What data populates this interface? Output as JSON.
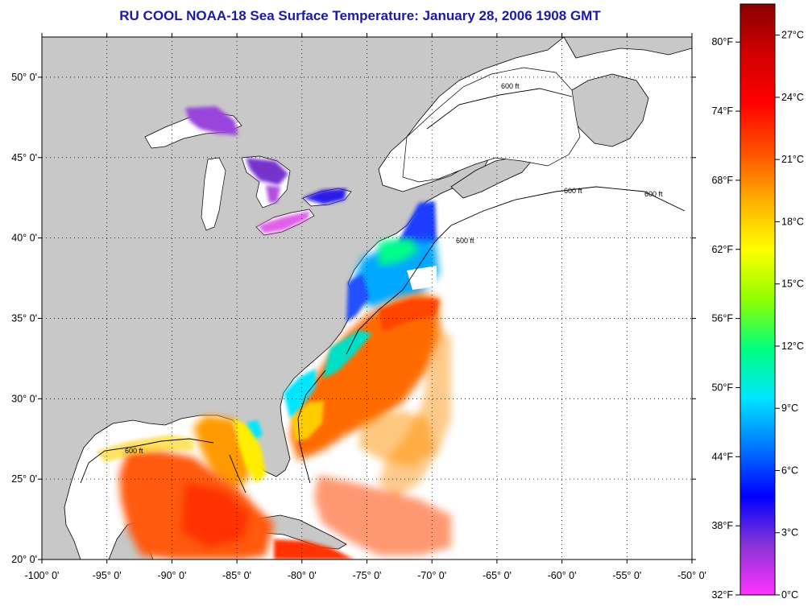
{
  "title": "RU COOL  NOAA-18  Sea Surface Temperature:  January 28, 2006 1908 GMT",
  "map": {
    "lon_ticks": [
      "-100° 0'",
      "-95° 0'",
      "-90° 0'",
      "-85° 0'",
      "-80° 0'",
      "-75° 0'",
      "-70° 0'",
      "-65° 0'",
      "-60° 0'",
      "-55° 0'",
      "-50° 0'"
    ],
    "lat_ticks": [
      "50° 0'",
      "45° 0'",
      "40° 0'",
      "35° 0'",
      "30° 0'",
      "25° 0'",
      "20° 0'"
    ],
    "lon_range": [
      -100,
      -50
    ],
    "lat_range": [
      20,
      52.5
    ],
    "gridlines": "dotted",
    "contour_labels": [
      "600 ft",
      "600 ft",
      "600 ft",
      "600 ft",
      "600 ft"
    ],
    "colors": {
      "land": "#c8c8c8",
      "no_data": "#ffffff",
      "frame": "#000000"
    }
  },
  "colorbar": {
    "fahrenheit_labels": [
      "80°F",
      "74°F",
      "68°F",
      "62°F",
      "56°F",
      "50°F",
      "44°F",
      "38°F",
      "32°F"
    ],
    "fahrenheit_values": [
      80,
      74,
      68,
      62,
      56,
      50,
      44,
      38,
      32
    ],
    "celsius_labels": [
      "27°C",
      "24°C",
      "21°C",
      "18°C",
      "15°C",
      "12°C",
      "9°C",
      "6°C",
      "3°C",
      "0°C"
    ],
    "celsius_values": [
      27,
      24,
      21,
      18,
      15,
      12,
      9,
      6,
      3,
      0
    ],
    "range_c": [
      0,
      28.5
    ],
    "palette": [
      "#ff33ff",
      "#8a35d6",
      "#0000ff",
      "#0077ff",
      "#00e6ff",
      "#00ff80",
      "#90ff00",
      "#ffff00",
      "#ffb000",
      "#ff5000",
      "#ff0000",
      "#d00000",
      "#8a0000"
    ]
  }
}
